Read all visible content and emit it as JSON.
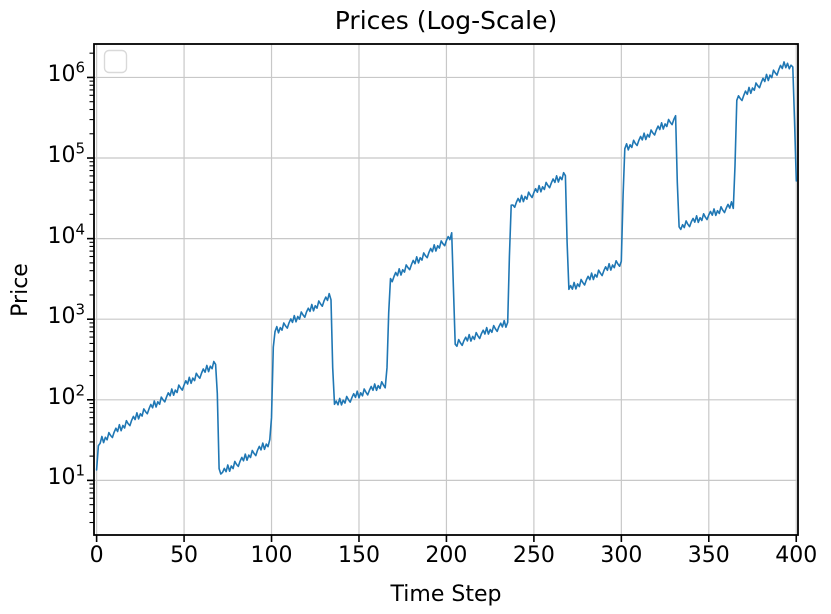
{
  "chart_data": {
    "type": "line",
    "title": "Prices (Log-Scale)",
    "xlabel": "Time Step",
    "ylabel": "Price",
    "y_scale": "log",
    "grid": true,
    "legend": {
      "entries": [],
      "position": "upper-left",
      "note": "empty legend box"
    },
    "xlim": [
      -1.5,
      401
    ],
    "ylim": [
      2.1,
      2600000
    ],
    "x_ticks": [
      0,
      50,
      100,
      150,
      200,
      250,
      300,
      350,
      400
    ],
    "x_tick_labels": [
      "0",
      "50",
      "100",
      "150",
      "200",
      "250",
      "300",
      "350",
      "400"
    ],
    "y_tick_base": "10",
    "y_tick_exponents": [
      "1",
      "2",
      "3",
      "4",
      "5",
      "6"
    ],
    "colors": {
      "line": "#1f77b4",
      "grid": "#c8c8c8",
      "spine": "#000000",
      "tick": "#000000",
      "legend_border": "#d9d9d9",
      "background": "#ffffff"
    },
    "series": [
      {
        "name": "price",
        "x_start": 0,
        "x_step": 1,
        "values": [
          13.5,
          27,
          28.8,
          35,
          29.4,
          34.2,
          31.9,
          39.2,
          36.1,
          34,
          39.5,
          44.4,
          40.4,
          49.1,
          41.3,
          48,
          44.7,
          55,
          50.7,
          47.8,
          55.5,
          62.2,
          56.7,
          68.9,
          57.9,
          67.3,
          62.7,
          77.1,
          71.1,
          67,
          77.8,
          87.3,
          79.6,
          96.6,
          81.3,
          94.4,
          87.9,
          108,
          99.8,
          94.2,
          109,
          122,
          112,
          136,
          114,
          132,
          123,
          152,
          140,
          132,
          153,
          172,
          157,
          190,
          160,
          186,
          173,
          213,
          196,
          185,
          215,
          241,
          220,
          267,
          224,
          261,
          243,
          299,
          275,
          120,
          14,
          12,
          12.6,
          14.1,
          12.8,
          15.5,
          13,
          15.1,
          14,
          17.2,
          15.8,
          14.9,
          17.2,
          19.3,
          17.5,
          21.2,
          17.8,
          20.6,
          19.2,
          23.5,
          21.6,
          20.3,
          23.6,
          26.4,
          23.9,
          29,
          24.3,
          28.2,
          26.2,
          32.1,
          60,
          450,
          700,
          810,
          679,
          787,
          731,
          897,
          826,
          776,
          900,
          1010,
          914,
          1110,
          929,
          1080,
          1000,
          1230,
          1130,
          1060,
          1230,
          1370,
          1250,
          1520,
          1270,
          1470,
          1370,
          1680,
          1550,
          1450,
          1680,
          1880,
          1710,
          2080,
          1740,
          250,
          88,
          96.4,
          86.7,
          104,
          86.3,
          98.9,
          91,
          110,
          100,
          93.5,
          107,
          119,
          107,
          128,
          106,
          122,
          112,
          136,
          124,
          115,
          132,
          146,
          131,
          157,
          131,
          150,
          138,
          167,
          152,
          141,
          250,
          1200,
          3200,
          2920,
          3390,
          3800,
          3470,
          4220,
          3540,
          4110,
          3840,
          4720,
          4360,
          4110,
          4780,
          5360,
          4890,
          5940,
          4990,
          5790,
          5410,
          6650,
          6140,
          5790,
          6730,
          7550,
          6890,
          8380,
          7030,
          8170,
          7620,
          9380,
          8650,
          8170,
          9480,
          10600,
          9710,
          11800,
          2500,
          490,
          461,
          558,
          508,
          473,
          541,
          598,
          538,
          644,
          535,
          612,
          562,
          682,
          621,
          577,
          661,
          731,
          656,
          787,
          653,
          746,
          687,
          834,
          757,
          705,
          807,
          891,
          802,
          961,
          796,
          912,
          6000,
          26000,
          26100,
          24500,
          28300,
          31500,
          28500,
          34500,
          28800,
          33300,
          30800,
          37700,
          34500,
          32400,
          37300,
          41600,
          37700,
          45500,
          38100,
          44000,
          40700,
          49800,
          45600,
          42800,
          49300,
          55000,
          49800,
          60100,
          50400,
          58100,
          53800,
          65800,
          60300,
          9000,
          2350,
          2610,
          2360,
          2850,
          2380,
          2740,
          2540,
          3110,
          2840,
          2660,
          3070,
          3410,
          3090,
          3730,
          3110,
          3590,
          3330,
          4060,
          3720,
          3480,
          4010,
          4470,
          4050,
          4880,
          4070,
          4700,
          4350,
          5310,
          4860,
          4550,
          5250,
          35000,
          130000,
          150000,
          126000,
          146000,
          135000,
          166000,
          152000,
          143000,
          165000,
          185000,
          168000,
          203000,
          170000,
          196000,
          182000,
          223000,
          205000,
          193000,
          223000,
          249000,
          226000,
          274000,
          229000,
          265000,
          246000,
          301000,
          277000,
          260000,
          301000,
          335000,
          50000,
          14000,
          13000,
          14900,
          13700,
          16600,
          15100,
          14100,
          16100,
          17800,
          16000,
          19200,
          15900,
          18200,
          16800,
          20300,
          18500,
          17200,
          19700,
          21700,
          19500,
          23400,
          19400,
          22200,
          20500,
          24800,
          22500,
          21000,
          24000,
          26600,
          23900,
          28600,
          23700,
          80000,
          520000,
          592000,
          547000,
          518000,
          601000,
          676000,
          618000,
          753000,
          636000,
          740000,
          692000,
          853000,
          787000,
          745000,
          867000,
          975000,
          891000,
          1090000,
          916000,
          1070000,
          995000,
          1230000,
          1140000,
          1070000,
          1250000,
          1410000,
          1290000,
          1560000,
          1320000,
          1500000,
          1280000,
          1420000,
          1350000,
          300000,
          52000
        ]
      }
    ]
  }
}
